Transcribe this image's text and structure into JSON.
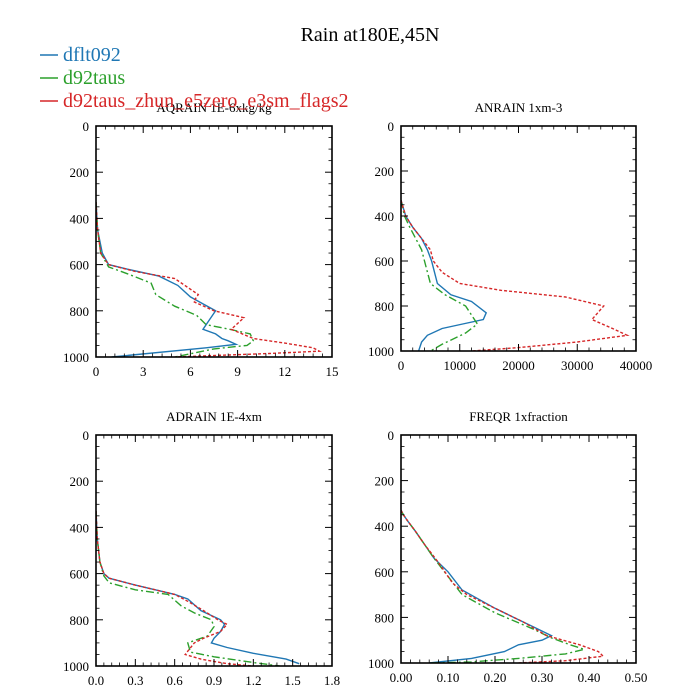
{
  "title": "Rain at180E,45N",
  "legend": [
    {
      "label": "dflt092",
      "color": "#1f77b4",
      "dash": "solid"
    },
    {
      "label": "d92taus",
      "color": "#2ca02c",
      "dash": "dashed"
    },
    {
      "label": "d92taus_zhun_e5zero_e3sm_flags2",
      "color": "#d62728",
      "dash": "dotted"
    }
  ],
  "chart_data": [
    {
      "type": "line",
      "title": "AQRAIN  1E-6xkg/kg",
      "xlim": [
        0,
        15
      ],
      "xticks": [
        0,
        3,
        6,
        9,
        12,
        15
      ],
      "xtick_labels": [
        "0",
        "3",
        "6",
        "9",
        "12",
        "15"
      ],
      "ylim": [
        1000,
        0
      ],
      "yticks": [
        0,
        200,
        400,
        600,
        800,
        1000
      ],
      "ytick_labels": [
        "0",
        "200",
        "400",
        "600",
        "800",
        "1000"
      ],
      "series": [
        {
          "name": "dflt092",
          "x": [
            0,
            0.1,
            0.4,
            0.8,
            2.0,
            4.0,
            5.2,
            6.0,
            6.8,
            7.6,
            7.2,
            6.8,
            7.6,
            8.0,
            8.4,
            8.9,
            7.0,
            1.0
          ],
          "y": [
            330,
            450,
            550,
            600,
            620,
            650,
            690,
            740,
            770,
            800,
            840,
            880,
            900,
            920,
            930,
            945,
            960,
            1000
          ]
        },
        {
          "name": "d92taus",
          "x": [
            0,
            0.1,
            0.3,
            0.8,
            2.0,
            3.5,
            3.8,
            5.0,
            6.4,
            7.0,
            8.5,
            9.8,
            10.0,
            9.6,
            7.5,
            5.0
          ],
          "y": [
            330,
            450,
            550,
            610,
            640,
            680,
            730,
            780,
            820,
            860,
            880,
            900,
            930,
            950,
            965,
            1000
          ]
        },
        {
          "name": "d92taus_zhun_e5zero_e3sm_flags2",
          "x": [
            0,
            0.1,
            0.3,
            0.8,
            2.5,
            5.0,
            6.5,
            6.2,
            7.5,
            9.4,
            8.6,
            10.0,
            12.0,
            13.8,
            14.2,
            11.0,
            7.0,
            5.0
          ],
          "y": [
            330,
            450,
            550,
            600,
            630,
            660,
            730,
            760,
            800,
            830,
            880,
            920,
            940,
            960,
            975,
            985,
            995,
            1000
          ]
        }
      ]
    },
    {
      "type": "line",
      "title": "ANRAIN  1xm-3",
      "xlim": [
        0,
        40000
      ],
      "xticks": [
        0,
        10000,
        20000,
        30000,
        40000
      ],
      "xtick_labels": [
        "0",
        "10000",
        "20000",
        "30000",
        "40000"
      ],
      "ylim": [
        1000,
        0
      ],
      "yticks": [
        0,
        200,
        400,
        600,
        800,
        1000
      ],
      "ytick_labels": [
        "0",
        "200",
        "400",
        "600",
        "800",
        "1000"
      ],
      "series": [
        {
          "name": "dflt092",
          "x": [
            0,
            800,
            2000,
            3500,
            4500,
            5200,
            6200,
            8500,
            12000,
            14500,
            14000,
            10500,
            7000,
            4500,
            3500,
            3000
          ],
          "y": [
            330,
            400,
            450,
            500,
            550,
            600,
            700,
            750,
            780,
            830,
            860,
            880,
            900,
            930,
            960,
            1000
          ]
        },
        {
          "name": "d92taus",
          "x": [
            0,
            600,
            1500,
            2500,
            3500,
            4000,
            5000,
            7500,
            11000,
            13000,
            11000,
            7000,
            5000
          ],
          "y": [
            330,
            400,
            450,
            500,
            550,
            600,
            700,
            750,
            800,
            880,
            920,
            970,
            1000
          ]
        },
        {
          "name": "d92taus_zhun_e5zero_e3sm_flags2",
          "x": [
            0,
            800,
            2000,
            3500,
            5000,
            5500,
            7000,
            10000,
            17000,
            28000,
            34500,
            32500,
            36000,
            38500,
            30000,
            20000,
            12000
          ],
          "y": [
            330,
            400,
            450,
            500,
            550,
            600,
            650,
            700,
            730,
            760,
            800,
            860,
            900,
            930,
            960,
            985,
            1000
          ]
        }
      ]
    },
    {
      "type": "line",
      "title": "ADRAIN  1E-4xm",
      "xlim": [
        0,
        1.8
      ],
      "xticks": [
        0,
        0.3,
        0.6,
        0.9,
        1.2,
        1.5,
        1.8
      ],
      "xtick_labels": [
        "0.0",
        "0.3",
        "0.6",
        "0.9",
        "1.2",
        "1.5",
        "1.8"
      ],
      "ylim": [
        1000,
        0
      ],
      "yticks": [
        0,
        200,
        400,
        600,
        800,
        1000
      ],
      "ytick_labels": [
        "0",
        "200",
        "400",
        "600",
        "800",
        "1000"
      ],
      "series": [
        {
          "name": "dflt092",
          "x": [
            0,
            0.01,
            0.03,
            0.06,
            0.1,
            0.3,
            0.6,
            0.7,
            0.8,
            0.95,
            0.98,
            0.95,
            0.9,
            0.88,
            1.0,
            1.2,
            1.45,
            1.55
          ],
          "y": [
            330,
            450,
            550,
            600,
            620,
            650,
            690,
            710,
            760,
            800,
            820,
            850,
            880,
            900,
            920,
            945,
            970,
            990
          ]
        },
        {
          "name": "d92taus",
          "x": [
            0,
            0.01,
            0.03,
            0.06,
            0.1,
            0.3,
            0.55,
            0.65,
            0.75,
            0.88,
            0.9,
            0.85,
            0.7,
            0.72,
            0.9,
            1.2,
            1.4
          ],
          "y": [
            330,
            450,
            550,
            610,
            640,
            670,
            690,
            740,
            770,
            800,
            830,
            870,
            900,
            940,
            960,
            985,
            1000
          ]
        },
        {
          "name": "d92taus_zhun_e5zero_e3sm_flags2",
          "x": [
            0,
            0.01,
            0.03,
            0.06,
            0.1,
            0.3,
            0.6,
            0.7,
            0.82,
            0.93,
            1.0,
            0.95,
            0.82,
            0.75,
            0.68,
            0.8,
            1.0,
            1.2
          ],
          "y": [
            330,
            450,
            550,
            600,
            620,
            650,
            690,
            720,
            760,
            800,
            820,
            850,
            880,
            900,
            950,
            970,
            990,
            1000
          ]
        }
      ]
    },
    {
      "type": "line",
      "title": "FREQR  1xfraction",
      "xlim": [
        0,
        0.5
      ],
      "xticks": [
        0,
        0.1,
        0.2,
        0.3,
        0.4,
        0.5
      ],
      "xtick_labels": [
        "0.00",
        "0.10",
        "0.20",
        "0.30",
        "0.40",
        "0.50"
      ],
      "ylim": [
        1000,
        0
      ],
      "yticks": [
        0,
        200,
        400,
        600,
        800,
        1000
      ],
      "ytick_labels": [
        "0",
        "200",
        "400",
        "600",
        "800",
        "1000"
      ],
      "series": [
        {
          "name": "dflt092",
          "x": [
            0,
            0.005,
            0.015,
            0.03,
            0.05,
            0.07,
            0.1,
            0.13,
            0.2,
            0.28,
            0.32,
            0.3,
            0.25,
            0.22,
            0.15,
            0.06
          ],
          "y": [
            330,
            350,
            380,
            420,
            480,
            540,
            600,
            680,
            760,
            840,
            880,
            900,
            920,
            950,
            980,
            1000
          ]
        },
        {
          "name": "d92taus",
          "x": [
            0,
            0.005,
            0.015,
            0.03,
            0.05,
            0.07,
            0.1,
            0.13,
            0.2,
            0.28,
            0.32,
            0.36,
            0.39,
            0.35,
            0.25,
            0.15,
            0.06
          ],
          "y": [
            330,
            350,
            380,
            420,
            480,
            540,
            620,
            700,
            780,
            850,
            890,
            920,
            940,
            960,
            980,
            995,
            1000
          ]
        },
        {
          "name": "d92taus_zhun_e5zero_e3sm_flags2",
          "x": [
            0,
            0.005,
            0.015,
            0.03,
            0.05,
            0.08,
            0.11,
            0.14,
            0.2,
            0.26,
            0.31,
            0.38,
            0.42,
            0.43,
            0.35,
            0.25
          ],
          "y": [
            330,
            350,
            380,
            420,
            480,
            560,
            650,
            700,
            760,
            820,
            880,
            920,
            950,
            970,
            990,
            1000
          ]
        }
      ]
    }
  ]
}
